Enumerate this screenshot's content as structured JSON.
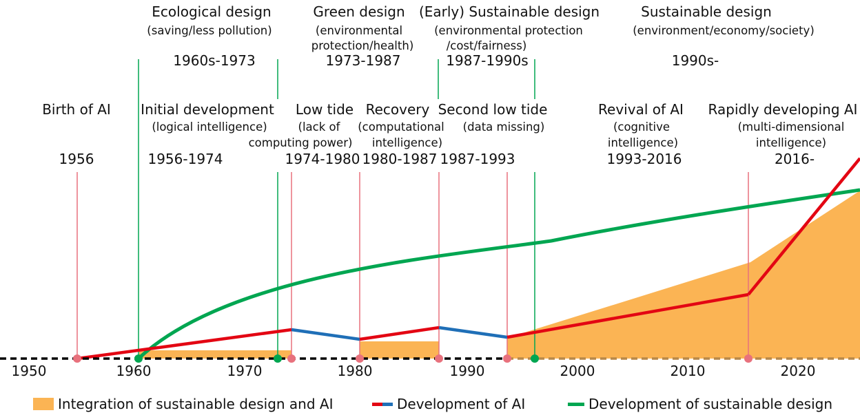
{
  "colors": {
    "sustainable": "#00a651",
    "ai_growth": "#e30613",
    "ai_decline": "#1f6fb7",
    "integration": "#fbb454",
    "ai_marker": "#e8717d",
    "sd_marker": "#00a651",
    "axis": "#000000"
  },
  "sustainable_phases": [
    {
      "title": "Ecological design",
      "desc": [
        "(saving/less pollution)"
      ],
      "period": "1960s-1973"
    },
    {
      "title": "Green design",
      "desc": [
        "(environmental",
        "protection/health)"
      ],
      "period": "1973-1987"
    },
    {
      "title": "(Early) Sustainable design",
      "desc": [
        "(environmental protection",
        "/cost/fairness)"
      ],
      "period": "1987-1990s"
    },
    {
      "title": "Sustainable design",
      "desc": [
        "(environment/economy/society)"
      ],
      "period": "1990s-"
    }
  ],
  "ai_phases": [
    {
      "title": "Birth of AI",
      "desc": [],
      "period": "1956"
    },
    {
      "title": "Initial development",
      "desc": [
        "(logical intelligence)"
      ],
      "period": "1956-1974"
    },
    {
      "title": "Low tide",
      "desc": [
        "(lack of",
        "computing power)"
      ],
      "period": "1974-1980"
    },
    {
      "title": "Recovery",
      "desc": [
        "(computational",
        "intelligence)"
      ],
      "period": "1980-1987"
    },
    {
      "title": "Second low tide",
      "desc": [
        "(data missing)"
      ],
      "period": "1987-1993"
    },
    {
      "title": "Revival of AI",
      "desc": [
        "(cognitive",
        "intelligence)"
      ],
      "period": "1993-2016"
    },
    {
      "title": "Rapidly developing AI",
      "desc": [
        "(multi-dimensional",
        "intelligence)"
      ],
      "period": "2016-"
    }
  ],
  "axis": {
    "ticks": [
      "1950",
      "1960",
      "1970",
      "1980",
      "1990",
      "2000",
      "2010",
      "2020"
    ]
  },
  "legend": {
    "integration": "Integration of sustainable design and AI",
    "ai": "Development of AI",
    "sustainable": "Development of sustainable design"
  }
}
